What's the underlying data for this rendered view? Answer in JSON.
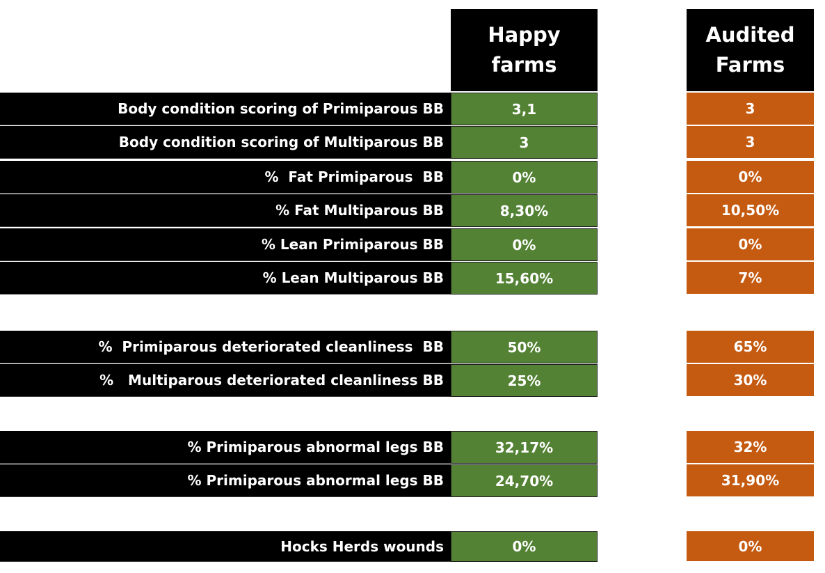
{
  "headers": {
    "happy": [
      "Happy",
      "farms"
    ],
    "audited": [
      "Audited",
      "Farms"
    ]
  },
  "rows": [
    {
      "label": "Body condition scoring of Primiparous BB",
      "happy": "3,1",
      "audited": "3"
    },
    {
      "label": "Body condition scoring of Multiparous BB",
      "happy": "3",
      "audited": "3"
    },
    {
      "label": "%  Fat Primiparous  BB",
      "happy": "0%",
      "audited": "0%"
    },
    {
      "label": "% Fat Multiparous BB",
      "happy": "8,30%",
      "audited": "10,50%"
    },
    {
      "label": "% Lean Primiparous BB",
      "happy": "0%",
      "audited": "0%"
    },
    {
      "label": "% Lean Multiparous BB",
      "happy": "15,60%",
      "audited": "7%"
    },
    {
      "label": "%  Primiparous deteriorated cleanliness  BB",
      "happy": "50%",
      "audited": "65%"
    },
    {
      "label": "%   Multiparous deteriorated cleanliness BB",
      "happy": "25%",
      "audited": "30%"
    },
    {
      "label": "% Primiparous abnormal legs BB",
      "happy": "32,17%",
      "audited": "32%"
    },
    {
      "label": "% Primiparous abnormal legs BB",
      "happy": "24,70%",
      "audited": "31,90%"
    },
    {
      "label": "Hocks Herds wounds",
      "happy": "0%",
      "audited": "0%"
    }
  ],
  "colors": {
    "label_bg": "#000000",
    "happy_bg": "#548235",
    "audited_bg": "#c55a11",
    "text": "#ffffff"
  }
}
